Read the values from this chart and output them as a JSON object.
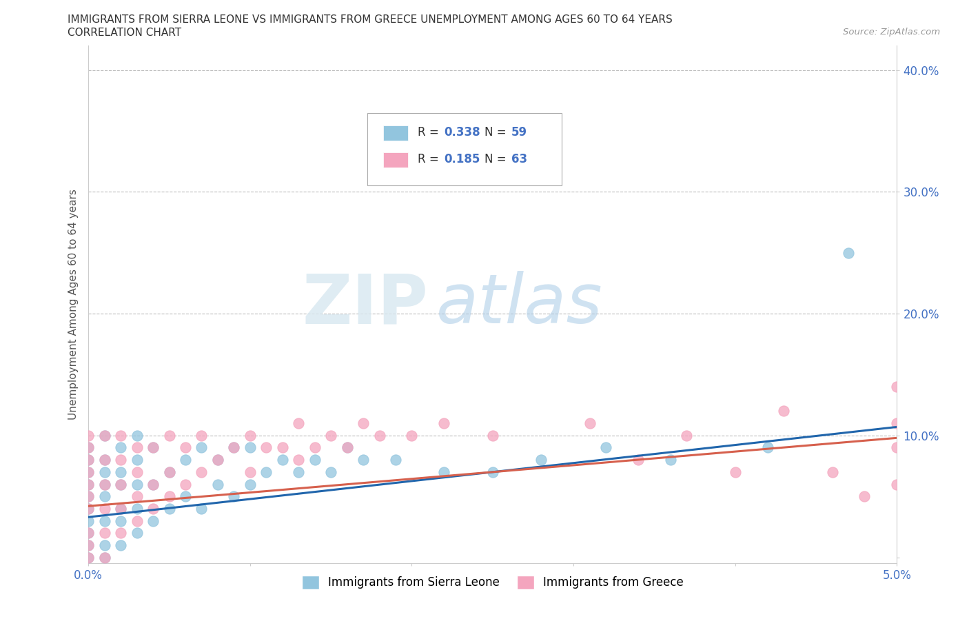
{
  "title_line1": "IMMIGRANTS FROM SIERRA LEONE VS IMMIGRANTS FROM GREECE UNEMPLOYMENT AMONG AGES 60 TO 64 YEARS",
  "title_line2": "CORRELATION CHART",
  "source_text": "Source: ZipAtlas.com",
  "ylabel": "Unemployment Among Ages 60 to 64 years",
  "xlim": [
    0.0,
    0.05
  ],
  "ylim": [
    -0.005,
    0.42
  ],
  "xticks": [
    0.0,
    0.01,
    0.02,
    0.03,
    0.04,
    0.05
  ],
  "yticks": [
    0.0,
    0.1,
    0.2,
    0.3,
    0.4
  ],
  "xtick_labels": [
    "0.0%",
    "",
    "",
    "",
    "",
    "5.0%"
  ],
  "ytick_labels": [
    "",
    "10.0%",
    "20.0%",
    "30.0%",
    "40.0%"
  ],
  "legend_label1": "Immigrants from Sierra Leone",
  "legend_label2": "Immigrants from Greece",
  "R1": 0.338,
  "N1": 59,
  "R2": 0.185,
  "N2": 63,
  "color1": "#92c5de",
  "color2": "#f4a5be",
  "line_color1": "#2166ac",
  "line_color2": "#d6604d",
  "watermark_zip": "ZIP",
  "watermark_atlas": "atlas",
  "background_color": "#ffffff",
  "scatter1_x": [
    0.0,
    0.0,
    0.0,
    0.0,
    0.0,
    0.0,
    0.0,
    0.0,
    0.0,
    0.0,
    0.001,
    0.001,
    0.001,
    0.001,
    0.001,
    0.001,
    0.001,
    0.001,
    0.002,
    0.002,
    0.002,
    0.002,
    0.002,
    0.002,
    0.003,
    0.003,
    0.003,
    0.003,
    0.003,
    0.004,
    0.004,
    0.004,
    0.005,
    0.005,
    0.006,
    0.006,
    0.007,
    0.007,
    0.008,
    0.008,
    0.009,
    0.009,
    0.01,
    0.01,
    0.011,
    0.012,
    0.013,
    0.014,
    0.015,
    0.016,
    0.017,
    0.019,
    0.022,
    0.025,
    0.028,
    0.032,
    0.036,
    0.042,
    0.047
  ],
  "scatter1_y": [
    0.0,
    0.01,
    0.02,
    0.03,
    0.04,
    0.05,
    0.06,
    0.07,
    0.08,
    0.09,
    0.0,
    0.01,
    0.03,
    0.05,
    0.06,
    0.07,
    0.08,
    0.1,
    0.01,
    0.03,
    0.04,
    0.06,
    0.07,
    0.09,
    0.02,
    0.04,
    0.06,
    0.08,
    0.1,
    0.03,
    0.06,
    0.09,
    0.04,
    0.07,
    0.05,
    0.08,
    0.04,
    0.09,
    0.06,
    0.08,
    0.05,
    0.09,
    0.06,
    0.09,
    0.07,
    0.08,
    0.07,
    0.08,
    0.07,
    0.09,
    0.08,
    0.08,
    0.07,
    0.07,
    0.08,
    0.09,
    0.08,
    0.09,
    0.25
  ],
  "scatter2_x": [
    0.0,
    0.0,
    0.0,
    0.0,
    0.0,
    0.0,
    0.0,
    0.0,
    0.0,
    0.0,
    0.001,
    0.001,
    0.001,
    0.001,
    0.001,
    0.001,
    0.002,
    0.002,
    0.002,
    0.002,
    0.002,
    0.003,
    0.003,
    0.003,
    0.003,
    0.004,
    0.004,
    0.004,
    0.005,
    0.005,
    0.005,
    0.006,
    0.006,
    0.007,
    0.007,
    0.008,
    0.009,
    0.01,
    0.01,
    0.011,
    0.012,
    0.013,
    0.013,
    0.014,
    0.015,
    0.016,
    0.017,
    0.018,
    0.02,
    0.022,
    0.025,
    0.028,
    0.031,
    0.034,
    0.037,
    0.04,
    0.043,
    0.046,
    0.048,
    0.05,
    0.05,
    0.05,
    0.05
  ],
  "scatter2_y": [
    0.0,
    0.01,
    0.02,
    0.04,
    0.05,
    0.06,
    0.07,
    0.08,
    0.09,
    0.1,
    0.0,
    0.02,
    0.04,
    0.06,
    0.08,
    0.1,
    0.02,
    0.04,
    0.06,
    0.08,
    0.1,
    0.03,
    0.05,
    0.07,
    0.09,
    0.04,
    0.06,
    0.09,
    0.05,
    0.07,
    0.1,
    0.06,
    0.09,
    0.07,
    0.1,
    0.08,
    0.09,
    0.07,
    0.1,
    0.09,
    0.09,
    0.08,
    0.11,
    0.09,
    0.1,
    0.09,
    0.11,
    0.1,
    0.1,
    0.11,
    0.1,
    0.31,
    0.11,
    0.08,
    0.1,
    0.07,
    0.12,
    0.07,
    0.05,
    0.06,
    0.09,
    0.11,
    0.14
  ],
  "trendline1_x": [
    0.0,
    0.05
  ],
  "trendline1_y": [
    0.033,
    0.107
  ],
  "trendline2_x": [
    0.0,
    0.05
  ],
  "trendline2_y": [
    0.042,
    0.098
  ]
}
